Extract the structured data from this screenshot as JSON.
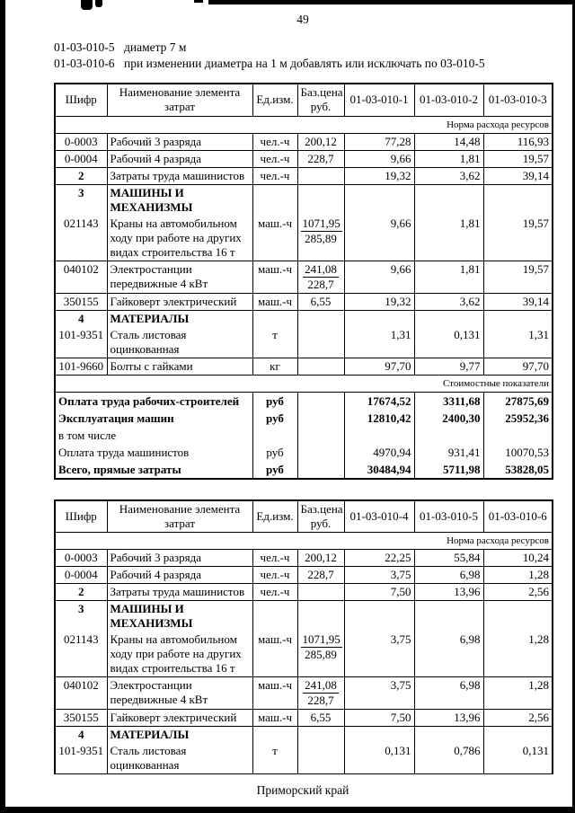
{
  "page": {
    "number": "49",
    "intro": [
      {
        "code": "01-03-010-5",
        "text": "диаметр 7 м"
      },
      {
        "code": "01-03-010-6",
        "text": "при изменении диаметра на 1 м добавлять или исключать по 03-010-5"
      }
    ],
    "footer": "Приморский край"
  },
  "tables": [
    {
      "headers": {
        "code": "Шифр",
        "name": "Наименование элемента затрат",
        "unit": "Ед.изм.",
        "price": "Баз.цена\nруб.",
        "specs": [
          "01-03-010-1",
          "01-03-010-2",
          "01-03-010-3"
        ]
      },
      "resource_banner": "Норма расхода ресурсов",
      "rows": [
        {
          "code": "0-0003",
          "name": "Рабочий 3 разряда",
          "unit": "чел.-ч",
          "price": "200,12",
          "values": [
            "77,28",
            "14,48",
            "116,93"
          ]
        },
        {
          "code": "0-0004",
          "name": "Рабочий 4 разряда",
          "unit": "чел.-ч",
          "price": "228,7",
          "values": [
            "9,66",
            "1,81",
            "19,57"
          ]
        },
        {
          "code": "2",
          "name": "Затраты труда машинистов",
          "unit": "чел.-ч",
          "price": "",
          "values": [
            "19,32",
            "3,62",
            "39,14"
          ],
          "code_bold": true
        },
        {
          "code": "3",
          "name": "МАШИНЫ И\nМЕХАНИЗМЫ",
          "unit": "",
          "price": "",
          "values": [
            "",
            "",
            ""
          ],
          "code_bold": true,
          "name_bold": true,
          "noline": true
        },
        {
          "code": "021143",
          "name": "Краны на автомобильном ходу при работе на других видах строительства 16 т",
          "unit": "маш.-ч",
          "price": "1071,95",
          "price2": "285,89",
          "values": [
            "9,66",
            "1,81",
            "19,57"
          ]
        },
        {
          "code": "040102",
          "name": "Электростанции передвижные 4 кВт",
          "unit": "маш.-ч",
          "price": "241,08",
          "price2": "228,7",
          "values": [
            "9,66",
            "1,81",
            "19,57"
          ]
        },
        {
          "code": "350155",
          "name": "Гайковерт электрический",
          "unit": "маш.-ч",
          "price": "6,55",
          "values": [
            "19,32",
            "3,62",
            "39,14"
          ]
        },
        {
          "code": "4",
          "name": "МАТЕРИАЛЫ",
          "unit": "",
          "price": "",
          "values": [
            "",
            "",
            ""
          ],
          "code_bold": true,
          "name_bold": true,
          "noline": true
        },
        {
          "code": "101-9351",
          "name": "Сталь листовая оцинкованная",
          "unit": "т",
          "price": "",
          "values": [
            "1,31",
            "0,131",
            "1,31"
          ]
        },
        {
          "code": "101-9660",
          "name": "Болты с гайками",
          "unit": "кг",
          "price": "",
          "values": [
            "97,70",
            "9,77",
            "97,70"
          ]
        }
      ],
      "cost_banner": "Стоимостные показатели",
      "cost_rows": [
        {
          "name": "Оплата труда рабочих-строителей",
          "unit": "руб",
          "values": [
            "17674,52",
            "3311,68",
            "27875,69"
          ],
          "bold": true
        },
        {
          "name": "Эксплуатация машин",
          "unit": "руб",
          "values": [
            "12810,42",
            "2400,30",
            "25952,36"
          ],
          "bold": true
        },
        {
          "name": "в том числе",
          "unit": "",
          "values": [
            "",
            "",
            ""
          ]
        },
        {
          "name": "Оплата труда машинистов",
          "unit": "руб",
          "values": [
            "4970,94",
            "931,41",
            "10070,53"
          ]
        },
        {
          "name": "Всего, прямые затраты",
          "unit": "руб",
          "values": [
            "30484,94",
            "5711,98",
            "53828,05"
          ],
          "bold": true
        }
      ]
    },
    {
      "headers": {
        "code": "Шифр",
        "name": "Наименование элемента затрат",
        "unit": "Ед.изм.",
        "price": "Баз.цена\nруб.",
        "specs": [
          "01-03-010-4",
          "01-03-010-5",
          "01-03-010-6"
        ]
      },
      "resource_banner": "Норма расхода ресурсов",
      "rows": [
        {
          "code": "0-0003",
          "name": "Рабочий 3 разряда",
          "unit": "чел.-ч",
          "price": "200,12",
          "values": [
            "22,25",
            "55,84",
            "10,24"
          ]
        },
        {
          "code": "0-0004",
          "name": "Рабочий 4 разряда",
          "unit": "чел.-ч",
          "price": "228,7",
          "values": [
            "3,75",
            "6,98",
            "1,28"
          ]
        },
        {
          "code": "2",
          "name": "Затраты труда машинистов",
          "unit": "чел.-ч",
          "price": "",
          "values": [
            "7,50",
            "13,96",
            "2,56"
          ],
          "code_bold": true
        },
        {
          "code": "3",
          "name": "МАШИНЫ И\nМЕХАНИЗМЫ",
          "unit": "",
          "price": "",
          "values": [
            "",
            "",
            ""
          ],
          "code_bold": true,
          "name_bold": true,
          "noline": true
        },
        {
          "code": "021143",
          "name": "Краны на автомобильном ходу при работе на других видах строительства 16 т",
          "unit": "маш.-ч",
          "price": "1071,95",
          "price2": "285,89",
          "values": [
            "3,75",
            "6,98",
            "1,28"
          ]
        },
        {
          "code": "040102",
          "name": "Электростанции передвижные 4 кВт",
          "unit": "маш.-ч",
          "price": "241,08",
          "price2": "228,7",
          "values": [
            "3,75",
            "6,98",
            "1,28"
          ]
        },
        {
          "code": "350155",
          "name": "Гайковерт электрический",
          "unit": "маш.-ч",
          "price": "6,55",
          "values": [
            "7,50",
            "13,96",
            "2,56"
          ]
        },
        {
          "code": "4",
          "name": "МАТЕРИАЛЫ",
          "unit": "",
          "price": "",
          "values": [
            "",
            "",
            ""
          ],
          "code_bold": true,
          "name_bold": true,
          "noline": true
        },
        {
          "code": "101-9351",
          "name": "Сталь листовая оцинкованная",
          "unit": "т",
          "price": "",
          "values": [
            "0,131",
            "0,786",
            "0,131"
          ]
        }
      ]
    }
  ]
}
